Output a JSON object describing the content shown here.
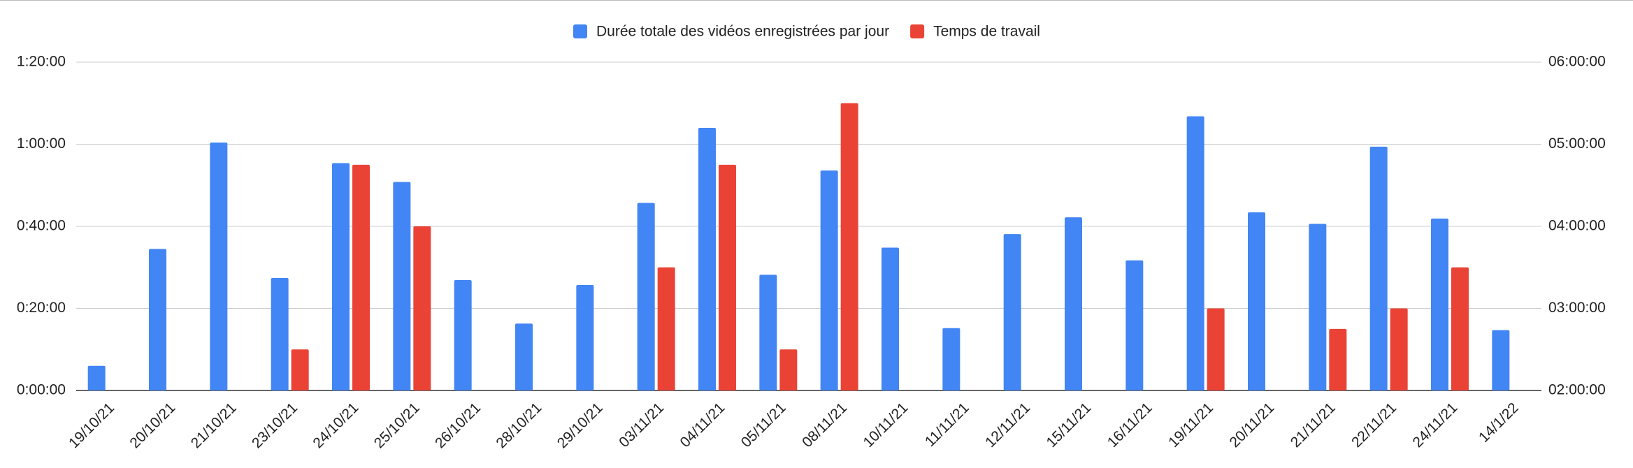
{
  "chart_data": {
    "type": "bar",
    "categories": [
      "19/10/21",
      "20/10/21",
      "21/10/21",
      "23/10/21",
      "24/10/21",
      "25/10/21",
      "26/10/21",
      "28/10/21",
      "29/10/21",
      "03/11/21",
      "04/11/21",
      "05/11/21",
      "08/11/21",
      "10/11/21",
      "11/11/21",
      "12/11/21",
      "15/11/21",
      "16/11/21",
      "19/11/21",
      "20/11/21",
      "21/11/21",
      "22/11/21",
      "24/11/21",
      "14/1/22"
    ],
    "series": [
      {
        "name": "Durée totale des vidéos enregistrées par jour",
        "color": "#4285f4",
        "values": [
          6,
          34.5,
          60.4,
          27.4,
          55.4,
          50.8,
          26.9,
          16.3,
          25.7,
          45.7,
          64,
          28.2,
          53.6,
          34.8,
          15.2,
          38.1,
          42.2,
          31.7,
          66.8,
          43.4,
          40.6,
          59.4,
          41.9,
          14.7
        ]
      },
      {
        "name": "Temps de travail",
        "color": "#ea4335",
        "axis": "y2",
        "values": [
          null,
          null,
          null,
          150,
          285,
          240,
          null,
          null,
          null,
          210,
          285,
          150,
          330,
          null,
          null,
          null,
          null,
          null,
          180,
          null,
          165,
          180,
          210,
          null
        ]
      }
    ],
    "ylim": [
      0,
      80
    ],
    "yticks": [
      {
        "value": 0,
        "label": "0:00:00"
      },
      {
        "value": 20,
        "label": "0:20:00"
      },
      {
        "value": 40,
        "label": "0:40:00"
      },
      {
        "value": 60,
        "label": "1:00:00"
      },
      {
        "value": 80,
        "label": "1:20:00"
      }
    ],
    "y2lim": [
      120,
      360
    ],
    "y2ticks": [
      {
        "value": 120,
        "label": "02:00:00"
      },
      {
        "value": 180,
        "label": "03:00:00"
      },
      {
        "value": 240,
        "label": "04:00:00"
      },
      {
        "value": 300,
        "label": "05:00:00"
      },
      {
        "value": 360,
        "label": "06:00:00"
      }
    ],
    "grid": true,
    "legend": "top"
  }
}
